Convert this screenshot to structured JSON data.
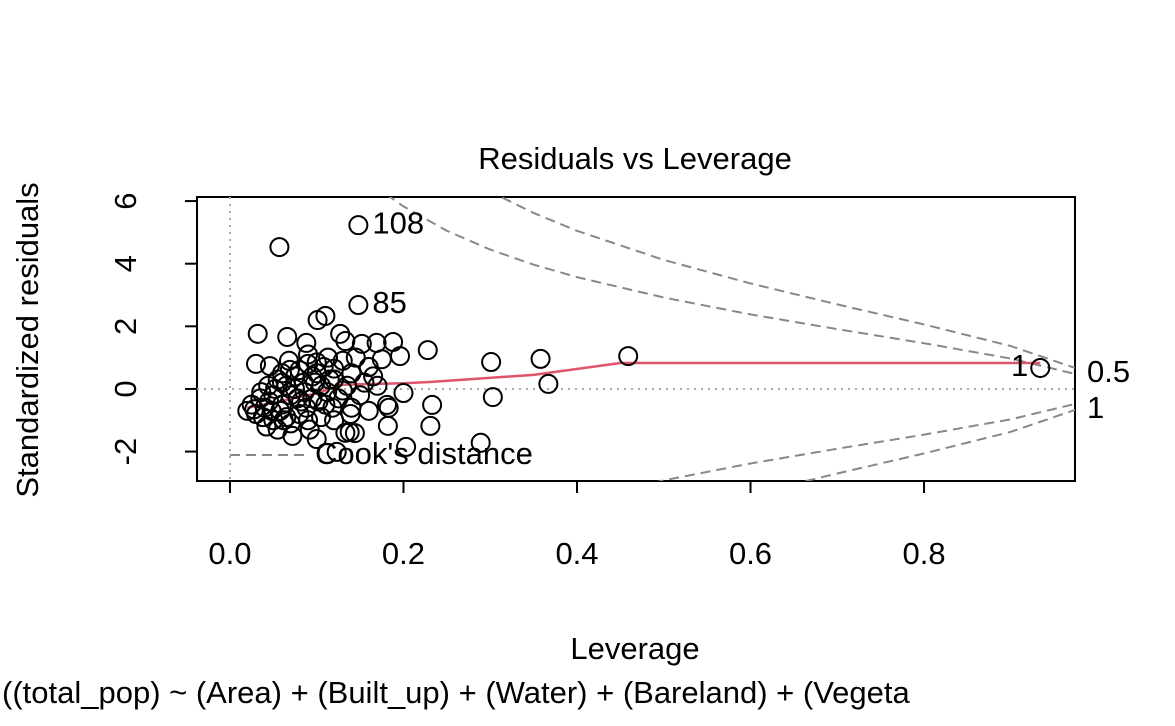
{
  "chart_data": {
    "type": "scatter",
    "title": "Residuals vs Leverage",
    "subtitle": "((total_pop) ~ (Area) + (Built_up) + (Water) + (Bareland) + (Vegeta",
    "x_label": "Leverage",
    "y_label": "Standardized residuals",
    "xlim": [
      -0.038,
      0.974
    ],
    "ylim": [
      -2.94,
      6.13
    ],
    "xticks": [
      {
        "value": 0,
        "label": "0.0"
      },
      0.2,
      0.4,
      0.6,
      0.8
    ],
    "yticks": [
      -2,
      0,
      2,
      4,
      6
    ],
    "x": [
      0.934,
      0.459,
      0.358,
      0.301,
      0.367,
      0.303,
      0.228,
      0.233,
      0.231,
      0.2,
      0.203,
      0.289,
      0.148,
      0.148,
      0.057,
      0.181,
      0.182,
      0.183,
      0.123,
      0.144,
      0.139,
      0.133,
      0.138,
      0.196,
      0.188,
      0.169,
      0.152,
      0.133,
      0.127,
      0.11,
      0.101,
      0.088,
      0.066,
      0.032,
      0.03,
      0.046,
      0.069,
      0.13,
      0.16,
      0.175,
      0.14,
      0.12,
      0.1,
      0.09,
      0.085,
      0.075,
      0.065,
      0.055,
      0.05,
      0.045,
      0.04,
      0.035,
      0.03,
      0.025,
      0.02,
      0.028,
      0.038,
      0.042,
      0.05,
      0.058,
      0.06,
      0.065,
      0.07,
      0.072,
      0.08,
      0.082,
      0.088,
      0.09,
      0.095,
      0.1,
      0.105,
      0.11,
      0.112,
      0.118,
      0.12,
      0.125,
      0.13,
      0.135,
      0.14,
      0.15,
      0.155,
      0.16,
      0.165,
      0.17,
      0.075,
      0.08,
      0.095,
      0.105,
      0.06,
      0.052,
      0.044,
      0.036,
      0.07,
      0.078,
      0.086,
      0.092,
      0.098,
      0.102,
      0.108,
      0.115,
      0.055,
      0.048,
      0.062,
      0.068,
      0.1,
      0.12,
      0.113,
      0.145,
      0.09,
      0.06
    ],
    "values": [
      0.67,
      1.05,
      0.96,
      0.86,
      0.16,
      -0.26,
      1.24,
      -0.51,
      -1.18,
      -0.13,
      -1.85,
      -1.72,
      5.23,
      2.68,
      4.53,
      -0.51,
      -1.18,
      -0.6,
      -2.01,
      -1.41,
      -0.8,
      -1.4,
      -1.38,
      1.05,
      1.5,
      1.47,
      1.44,
      1.53,
      1.76,
      2.33,
      2.2,
      1.47,
      1.66,
      1.76,
      0.8,
      0.73,
      0.61,
      0.9,
      0.7,
      0.95,
      0.5,
      0.3,
      0.5,
      0.8,
      0.2,
      0.4,
      0.1,
      0.3,
      -0.2,
      -0.4,
      -0.6,
      -0.3,
      -0.8,
      -0.5,
      -0.7,
      -0.65,
      -0.9,
      -1.2,
      -1.0,
      -0.7,
      -0.5,
      -0.9,
      -1.1,
      -1.5,
      -0.8,
      -0.4,
      -0.6,
      -1.0,
      -0.3,
      -1.6,
      -0.9,
      -0.5,
      -0.1,
      -0.6,
      -1.0,
      -0.3,
      -0.05,
      0.1,
      -0.6,
      -0.2,
      0.2,
      -0.7,
      0.4,
      0.1,
      0,
      0.6,
      0.4,
      0.1,
      0.2,
      0,
      0.1,
      -0.1,
      -0.2,
      -0.3,
      -0.1,
      -1.3,
      0.2,
      -0.4,
      0.7,
      0.3,
      -1.3,
      -0.7,
      -1.0,
      0.9,
      0.85,
      0.65,
      1.0,
      1.0,
      1.1,
      0.5
    ],
    "point_labels": [
      {
        "index": 12,
        "text": "108"
      },
      {
        "index": 13,
        "text": "85"
      },
      {
        "index": 0,
        "text": "1"
      }
    ],
    "smoother": {
      "color": "#df536b",
      "x": [
        0.02,
        0.05,
        0.08,
        0.1,
        0.127,
        0.15,
        0.2,
        0.23,
        0.35,
        0.45,
        0.5,
        0.934
      ],
      "values": [
        -0.6,
        -0.45,
        -0.25,
        -0.15,
        0.13,
        0.15,
        0.18,
        0.22,
        0.45,
        0.83,
        0.83,
        0.83
      ]
    },
    "cooks_distance": {
      "legend": "Cook's distance",
      "x": [
        0.18,
        0.2,
        0.25,
        0.3,
        0.35,
        0.4,
        0.5,
        0.6,
        0.7,
        0.8,
        0.9,
        0.974
      ],
      "levels": [
        {
          "label": "0.5",
          "upper": [
            6.22,
            5.83,
            5.05,
            4.45,
            3.97,
            3.57,
            2.92,
            2.38,
            1.91,
            1.46,
            0.97,
            0.48
          ],
          "lower": [
            -6.22,
            -5.83,
            -5.05,
            -4.45,
            -3.97,
            -3.57,
            -2.92,
            -2.38,
            -1.91,
            -1.46,
            -0.97,
            -0.48
          ]
        },
        {
          "label": "1",
          "upper": [
            8.8,
            8.25,
            7.14,
            6.3,
            5.62,
            5.05,
            4.12,
            3.37,
            2.7,
            2.06,
            1.37,
            0.67
          ],
          "lower": [
            -8.8,
            -8.25,
            -7.14,
            -6.3,
            -5.62,
            -5.05,
            -4.12,
            -3.37,
            -2.7,
            -2.06,
            -1.37,
            -0.67
          ]
        }
      ]
    }
  }
}
